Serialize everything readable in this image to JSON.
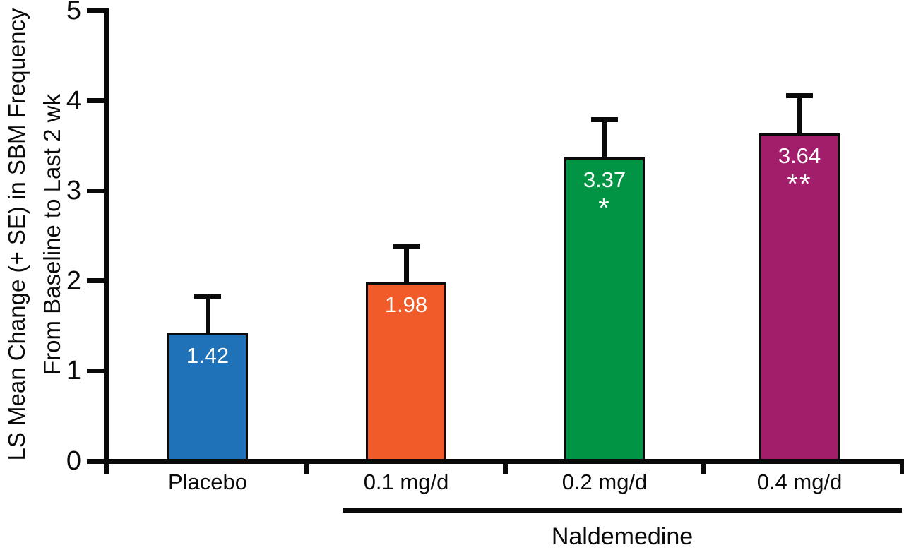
{
  "chart_data": {
    "type": "bar",
    "title": "",
    "ylabel_line1": "LS Mean Change (+ SE) in SBM Frequency",
    "ylabel_line2": "From Baseline to Last 2 wk",
    "ylim": [
      0,
      5
    ],
    "yticks": [
      "0",
      "1",
      "2",
      "3",
      "4",
      "5"
    ],
    "grid": "off",
    "legend": "none",
    "categories": [
      "Placebo",
      "0.1 mg/d",
      "0.2 mg/d",
      "0.4 mg/d"
    ],
    "values": [
      1.42,
      1.98,
      3.37,
      3.64
    ],
    "value_labels": [
      "1.42",
      "1.98",
      "3.37",
      "3.64"
    ],
    "errors_se_upper": [
      0.41,
      0.41,
      0.42,
      0.42
    ],
    "significance_markers": [
      "",
      "",
      "*",
      "**"
    ],
    "bar_colors": [
      "#1F72B8",
      "#F15A29",
      "#009444",
      "#A21E6B"
    ],
    "value_label_color": "#FFFFFF",
    "axis_color": "#0A0A0A",
    "group_label": "Naldemedine",
    "group_members": [
      "0.1 mg/d",
      "0.2 mg/d",
      "0.4 mg/d"
    ]
  }
}
